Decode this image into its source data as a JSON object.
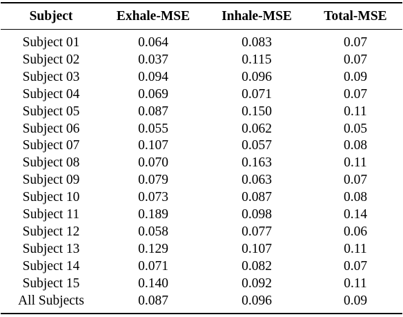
{
  "table": {
    "headers": [
      "Subject",
      "Exhale-MSE",
      "Inhale-MSE",
      "Total-MSE"
    ],
    "rows": [
      [
        "Subject 01",
        "0.064",
        "0.083",
        "0.07"
      ],
      [
        "Subject 02",
        "0.037",
        "0.115",
        "0.07"
      ],
      [
        "Subject 03",
        "0.094",
        "0.096",
        "0.09"
      ],
      [
        "Subject 04",
        "0.069",
        "0.071",
        "0.07"
      ],
      [
        "Subject 05",
        "0.087",
        "0.150",
        "0.11"
      ],
      [
        "Subject 06",
        "0.055",
        "0.062",
        "0.05"
      ],
      [
        "Subject 07",
        "0.107",
        "0.057",
        "0.08"
      ],
      [
        "Subject 08",
        "0.070",
        "0.163",
        "0.11"
      ],
      [
        "Subject 09",
        "0.079",
        "0.063",
        "0.07"
      ],
      [
        "Subject 10",
        "0.073",
        "0.087",
        "0.08"
      ],
      [
        "Subject 11",
        "0.189",
        "0.098",
        "0.14"
      ],
      [
        "Subject 12",
        "0.058",
        "0.077",
        "0.06"
      ],
      [
        "Subject 13",
        "0.129",
        "0.107",
        "0.11"
      ],
      [
        "Subject 14",
        "0.071",
        "0.082",
        "0.07"
      ],
      [
        "Subject 15",
        "0.140",
        "0.092",
        "0.11"
      ],
      [
        "All Subjects",
        "0.087",
        "0.096",
        "0.09"
      ]
    ]
  }
}
